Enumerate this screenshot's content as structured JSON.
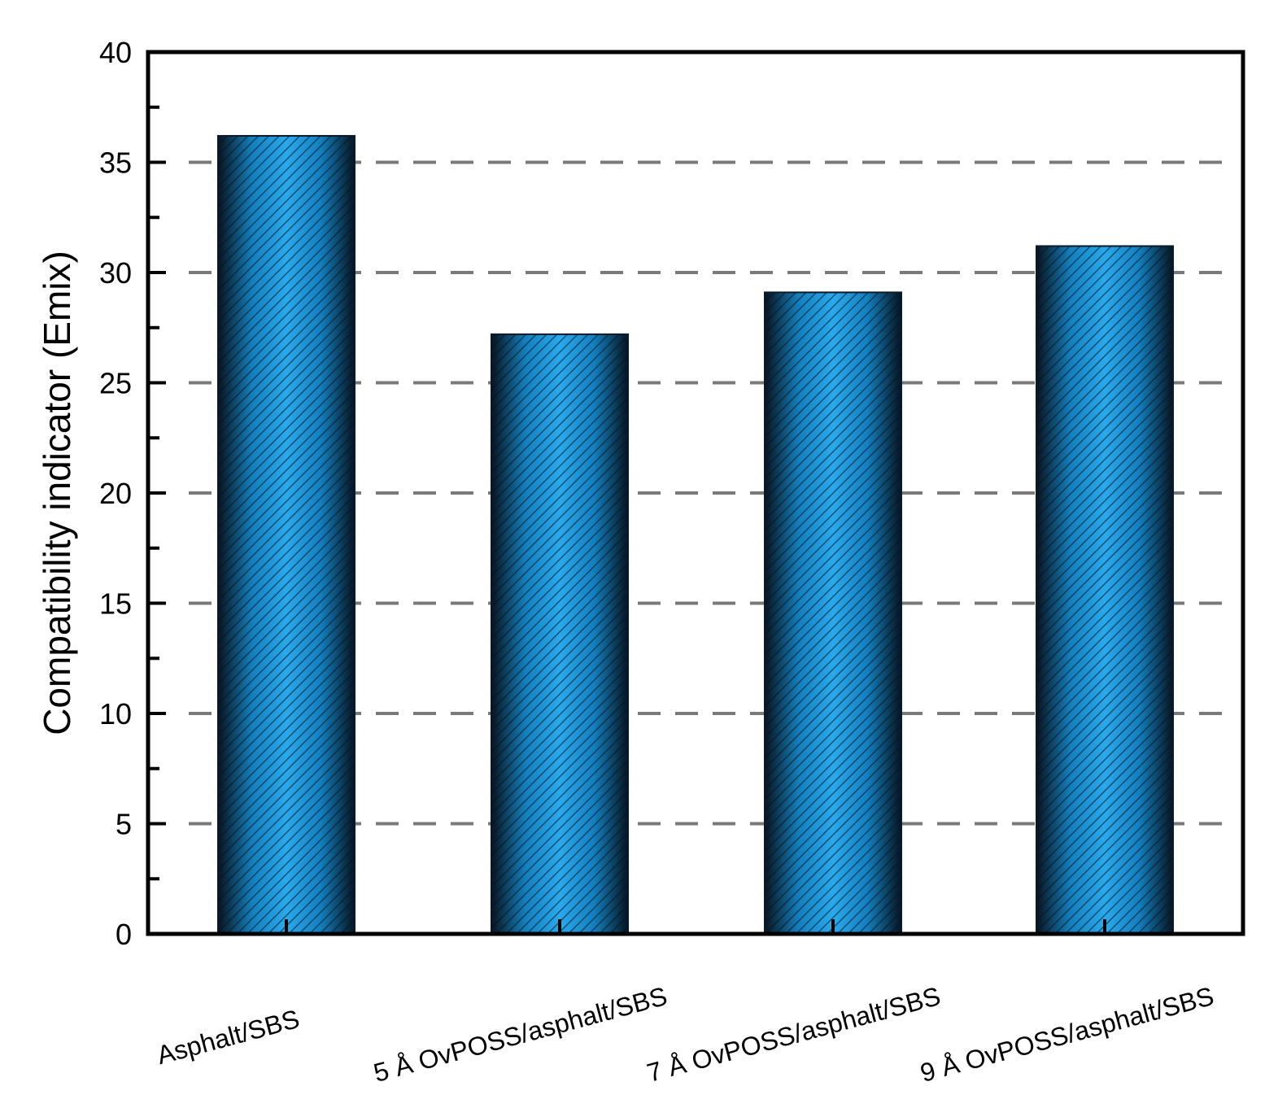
{
  "chart_data": {
    "type": "bar",
    "categories": [
      "Asphalt/SBS",
      "5 Å OvPOSS/asphalt/SBS",
      "7 Å OvPOSS/asphalt/SBS",
      "9 Å OvPOSS/asphalt/SBS"
    ],
    "values": [
      36.2,
      27.2,
      29.1,
      31.2
    ],
    "title": "",
    "xlabel": "",
    "ylabel": "Compatibility indicator (Emix)",
    "ylim": [
      0,
      40
    ],
    "yticks": [
      0,
      5,
      10,
      15,
      20,
      25,
      30,
      35,
      40
    ],
    "grid": "dashed horizontal",
    "bar_color": "#1a9be0",
    "bar_edge_color": "#0b1a2a",
    "grid_color": "#7a7a7a"
  }
}
